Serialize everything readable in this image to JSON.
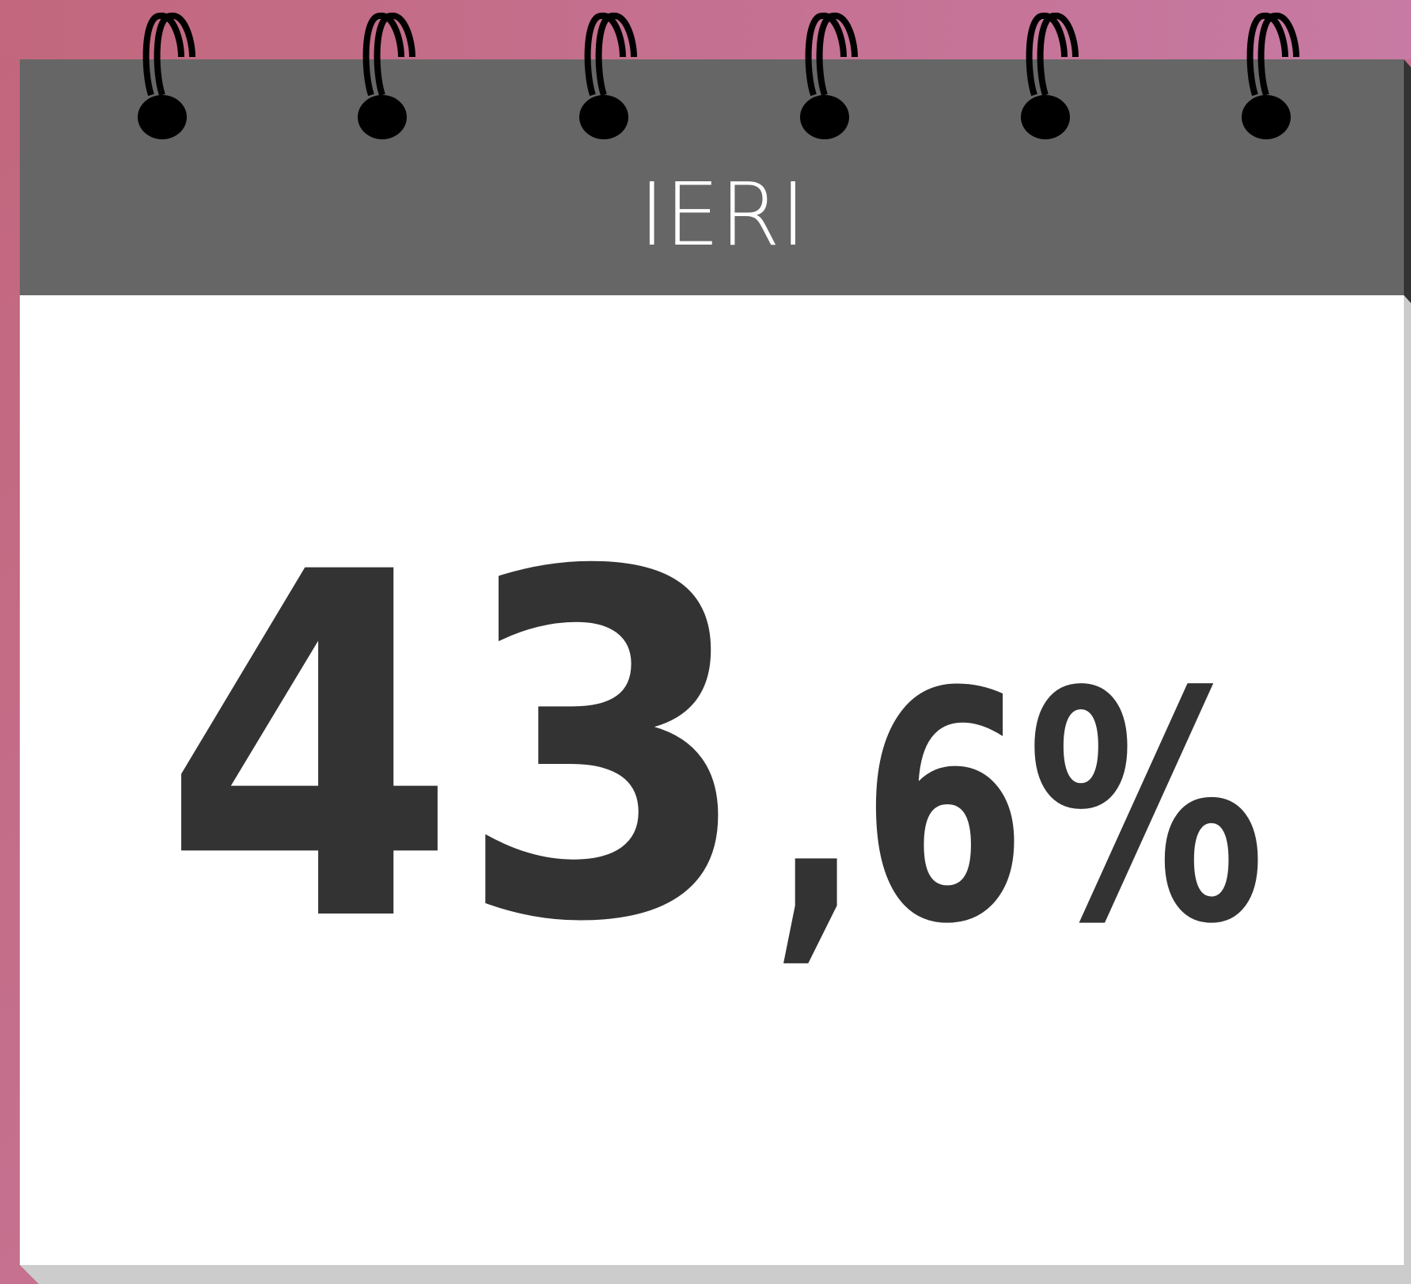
{
  "card": {
    "label": "IERI",
    "integer": "43",
    "fraction": ",6%"
  }
}
